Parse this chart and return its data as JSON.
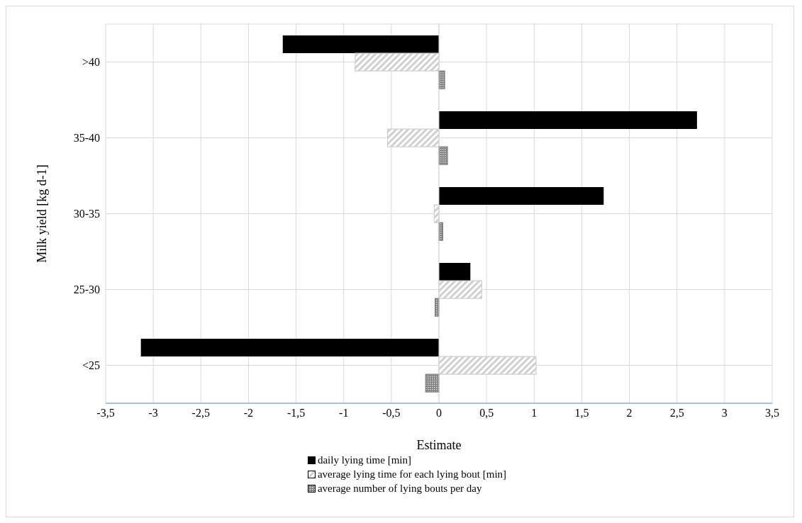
{
  "chart_data": {
    "type": "bar",
    "orientation": "horizontal",
    "xlabel": "Estimate",
    "ylabel": "Milk yield [kg d-1]",
    "categories": [
      ">40",
      "35-40",
      "30-35",
      "25-30",
      "<25"
    ],
    "series": [
      {
        "name": "daily lying time [min]",
        "color": "#000000",
        "values": [
          -1.64,
          2.71,
          1.73,
          0.33,
          -3.13
        ]
      },
      {
        "name": "average lying time for each lying bout [min]",
        "color": "#d0d0d0",
        "values": [
          -0.88,
          -0.54,
          -0.05,
          0.45,
          1.02
        ]
      },
      {
        "name": "average number of lying bouts per day",
        "color": "#808080",
        "values": [
          0.06,
          0.09,
          0.04,
          -0.04,
          -0.14
        ]
      }
    ],
    "xlim": [
      -3.5,
      3.5
    ],
    "xticks": [
      {
        "value": -3.5,
        "label": "-3,5"
      },
      {
        "value": -3,
        "label": "-3"
      },
      {
        "value": -2.5,
        "label": "-2,5"
      },
      {
        "value": -2,
        "label": "-2"
      },
      {
        "value": -1.5,
        "label": "-1,5"
      },
      {
        "value": -1,
        "label": "-1"
      },
      {
        "value": -0.5,
        "label": "-0,5"
      },
      {
        "value": 0,
        "label": "0"
      },
      {
        "value": 0.5,
        "label": "0,5"
      },
      {
        "value": 1,
        "label": "1"
      },
      {
        "value": 1.5,
        "label": "1,5"
      },
      {
        "value": 2,
        "label": "2"
      },
      {
        "value": 2.5,
        "label": "2,5"
      },
      {
        "value": 3,
        "label": "3"
      },
      {
        "value": 3.5,
        "label": "3,5"
      }
    ],
    "grid": true,
    "legend": "bottom"
  }
}
